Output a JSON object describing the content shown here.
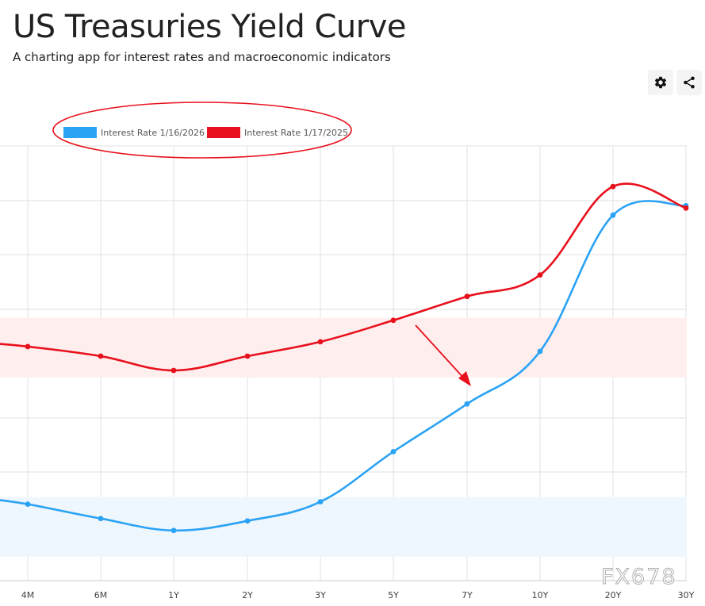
{
  "header": {
    "title": "US Treasuries Yield Curve",
    "subtitle": "A charting app for interest rates and macroeconomic indicators"
  },
  "toolbar": {
    "settings_icon": "gear-icon",
    "share_icon": "share-icon"
  },
  "watermark": "FX678",
  "colors": {
    "series_2026": "#2aa3f5",
    "series_2025": "#e8101c",
    "band_2026": "#eef6fe",
    "band_2025": "#ffeeee",
    "annotation": "#e8101c"
  },
  "chart_data": {
    "type": "line",
    "title": "",
    "xlabel": "",
    "ylabel": "",
    "categories": [
      "4M",
      "6M",
      "1Y",
      "2Y",
      "3Y",
      "5Y",
      "7Y",
      "10Y",
      "20Y",
      "30Y"
    ],
    "y_axis_labels_visible": false,
    "grid": true,
    "legend_position": "top-left",
    "ylim": [
      3.3,
      5.12
    ],
    "series": [
      {
        "name": "Interest Rate 1/16/2026",
        "color": "#2aa3f5",
        "values": [
          3.62,
          3.56,
          3.51,
          3.55,
          3.63,
          3.84,
          4.04,
          4.26,
          4.83,
          4.87
        ]
      },
      {
        "name": "Interest Rate 1/17/2025",
        "color": "#e8101c",
        "values": [
          4.28,
          4.24,
          4.18,
          4.24,
          4.3,
          4.39,
          4.49,
          4.58,
          4.95,
          4.86
        ]
      }
    ],
    "bands": [
      {
        "series": "Interest Rate 1/16/2026",
        "range": [
          3.4,
          3.65
        ],
        "color": "#eef6fe"
      },
      {
        "series": "Interest Rate 1/17/2025",
        "range": [
          4.15,
          4.4
        ],
        "color": "#ffeeee"
      }
    ],
    "annotations": {
      "legend_ellipse": "red ellipse around legend",
      "arrow": "red arrow pointing from red curve down to blue curve between 5Y and 7Y"
    }
  }
}
